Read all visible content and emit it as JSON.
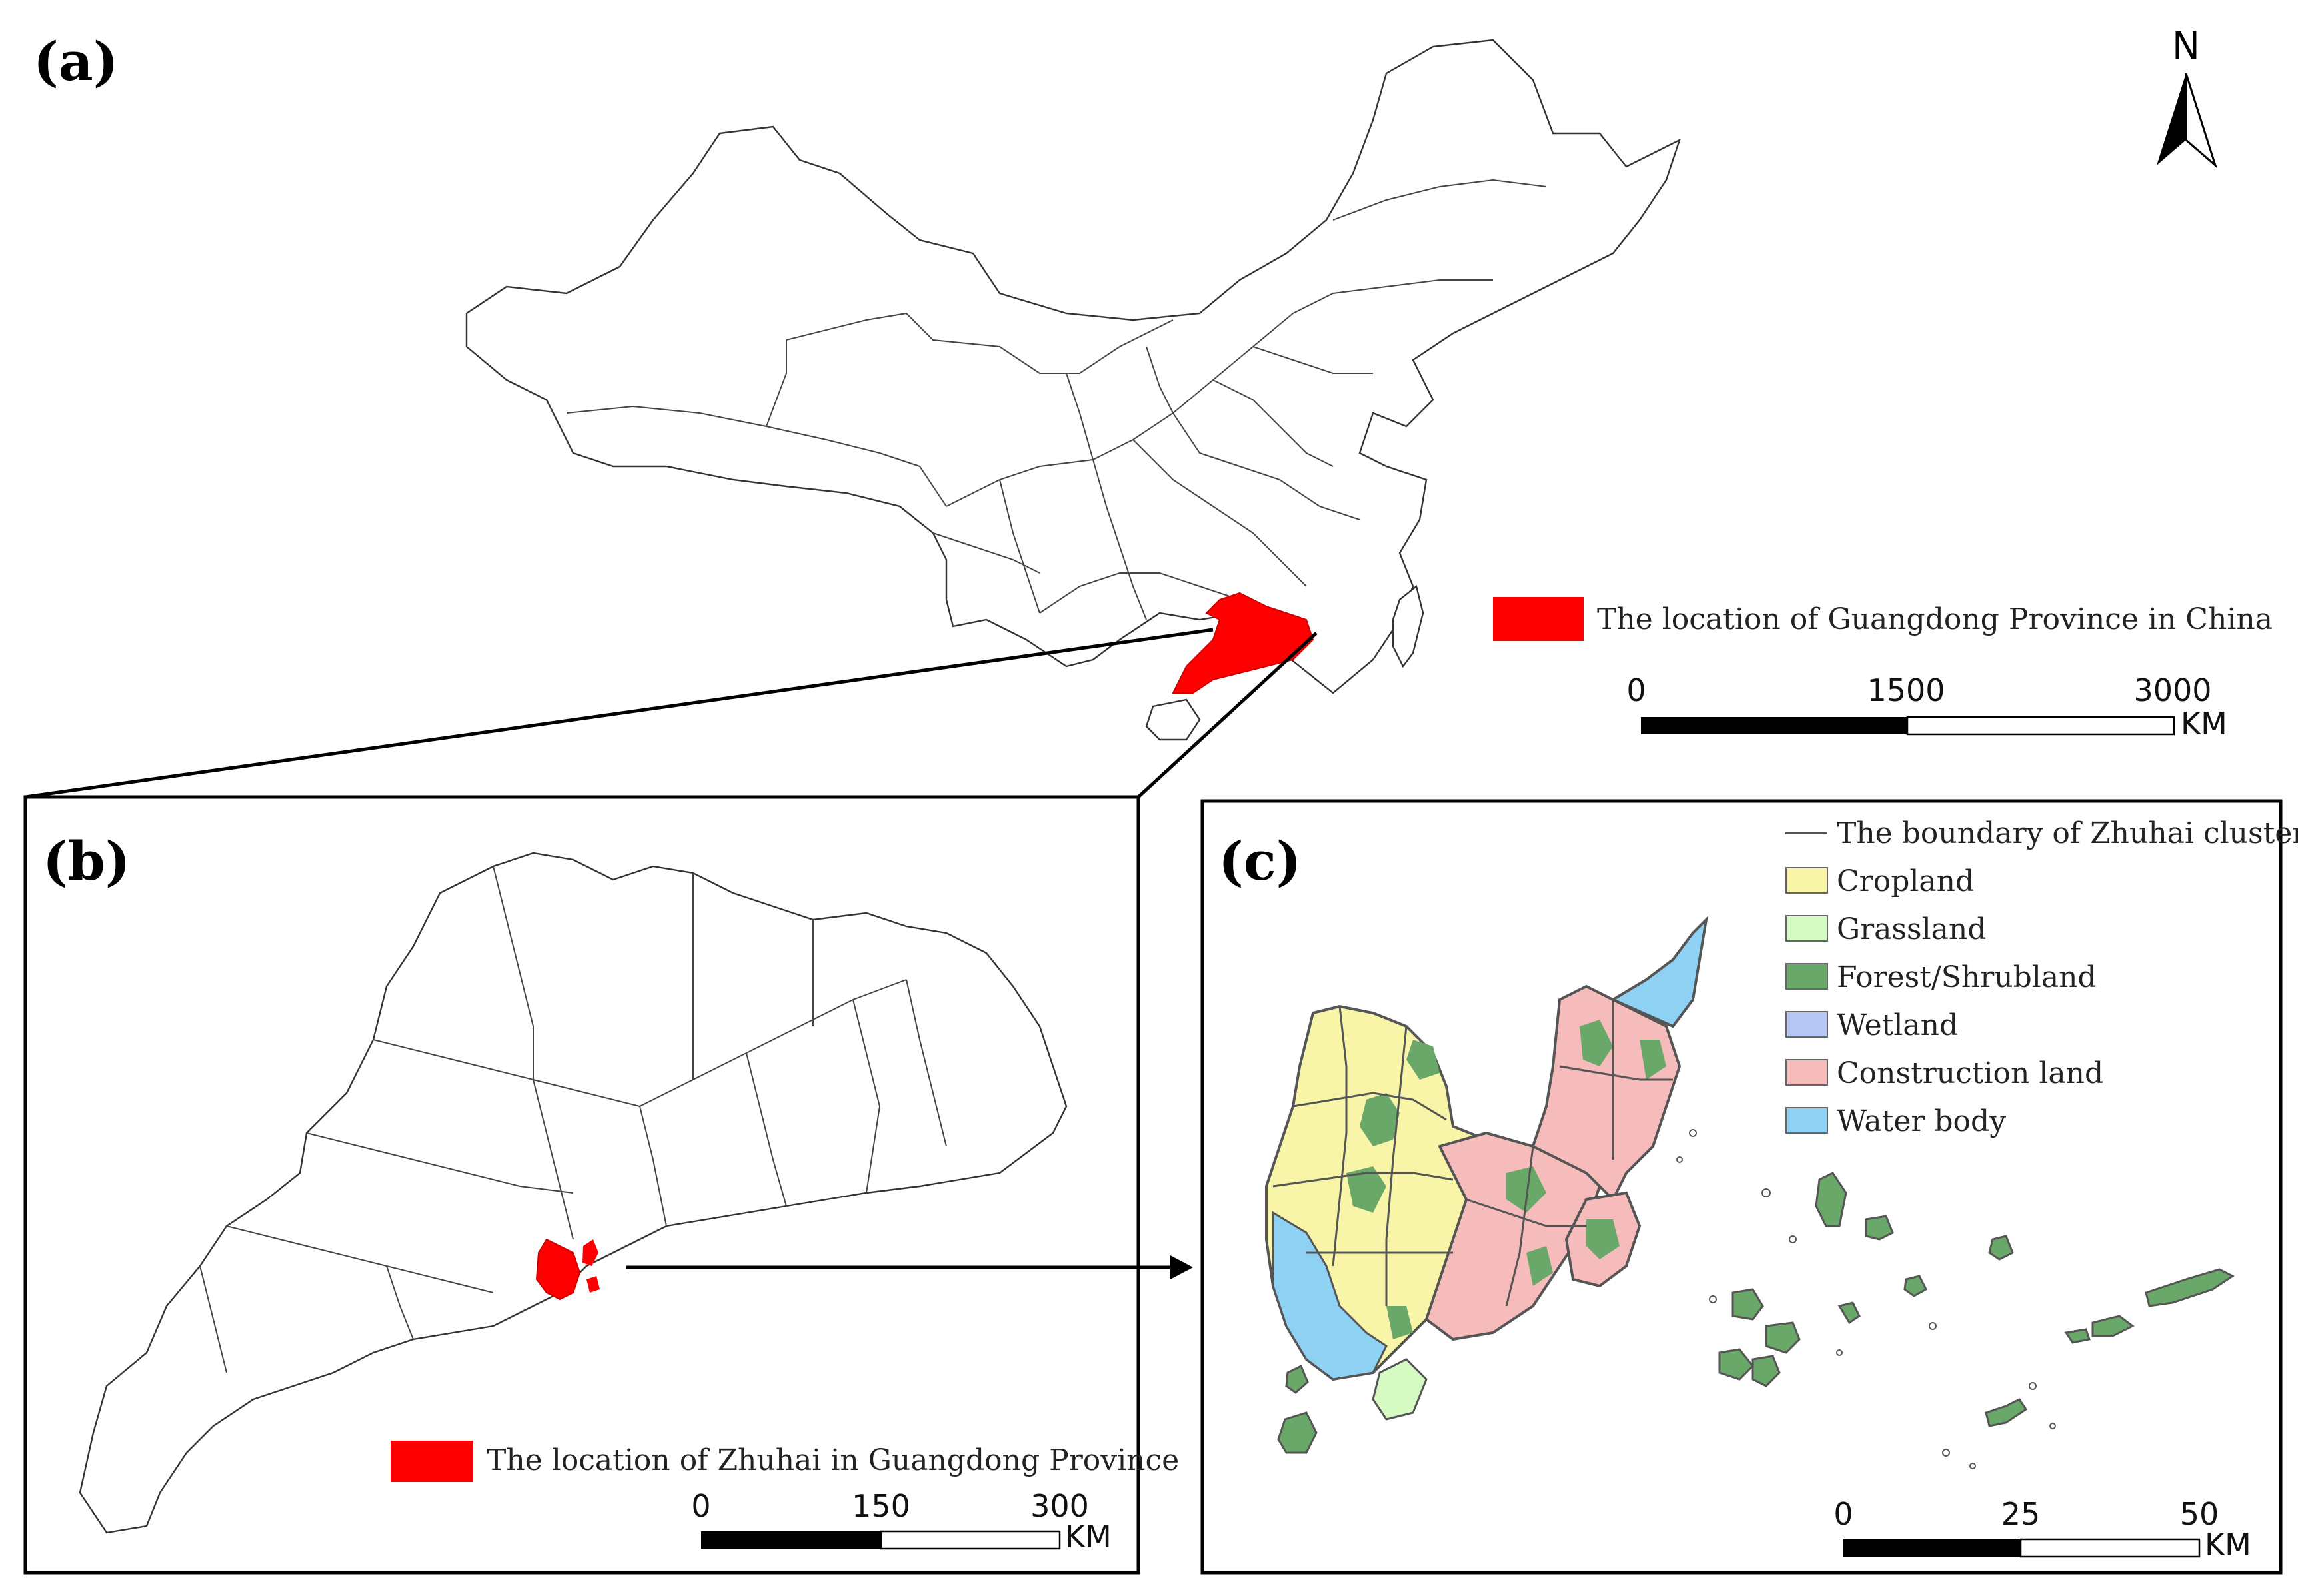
{
  "panels": {
    "a": {
      "label": "(a)",
      "legend": "The location of Guangdong Province in China",
      "scale": {
        "ticks": [
          "0",
          "1500",
          "3000"
        ],
        "unit": "KM"
      }
    },
    "b": {
      "label": "(b)",
      "legend": "The location of Zhuhai in Guangdong Province",
      "scale": {
        "ticks": [
          "0",
          "150",
          "300"
        ],
        "unit": "KM"
      }
    },
    "c": {
      "label": "(c)",
      "scale": {
        "ticks": [
          "0",
          "25",
          "50"
        ],
        "unit": "KM"
      }
    }
  },
  "north_arrow": {
    "label": "N"
  },
  "legend_c": [
    {
      "type": "line",
      "label": "The boundary of Zhuhai clusters",
      "color": "#555555"
    },
    {
      "type": "box",
      "label": "Cropland",
      "color": "#f9f5a8"
    },
    {
      "type": "box",
      "label": "Grassland",
      "color": "#d6fbc2"
    },
    {
      "type": "box",
      "label": "Forest/Shrubland",
      "color": "#6aa86a"
    },
    {
      "type": "box",
      "label": "Wetland",
      "color": "#b7c6f5"
    },
    {
      "type": "box",
      "label": "Construction land",
      "color": "#f6bcbc"
    },
    {
      "type": "box",
      "label": "Water body",
      "color": "#8fd1f2"
    }
  ],
  "highlight_color": "#ff0000"
}
